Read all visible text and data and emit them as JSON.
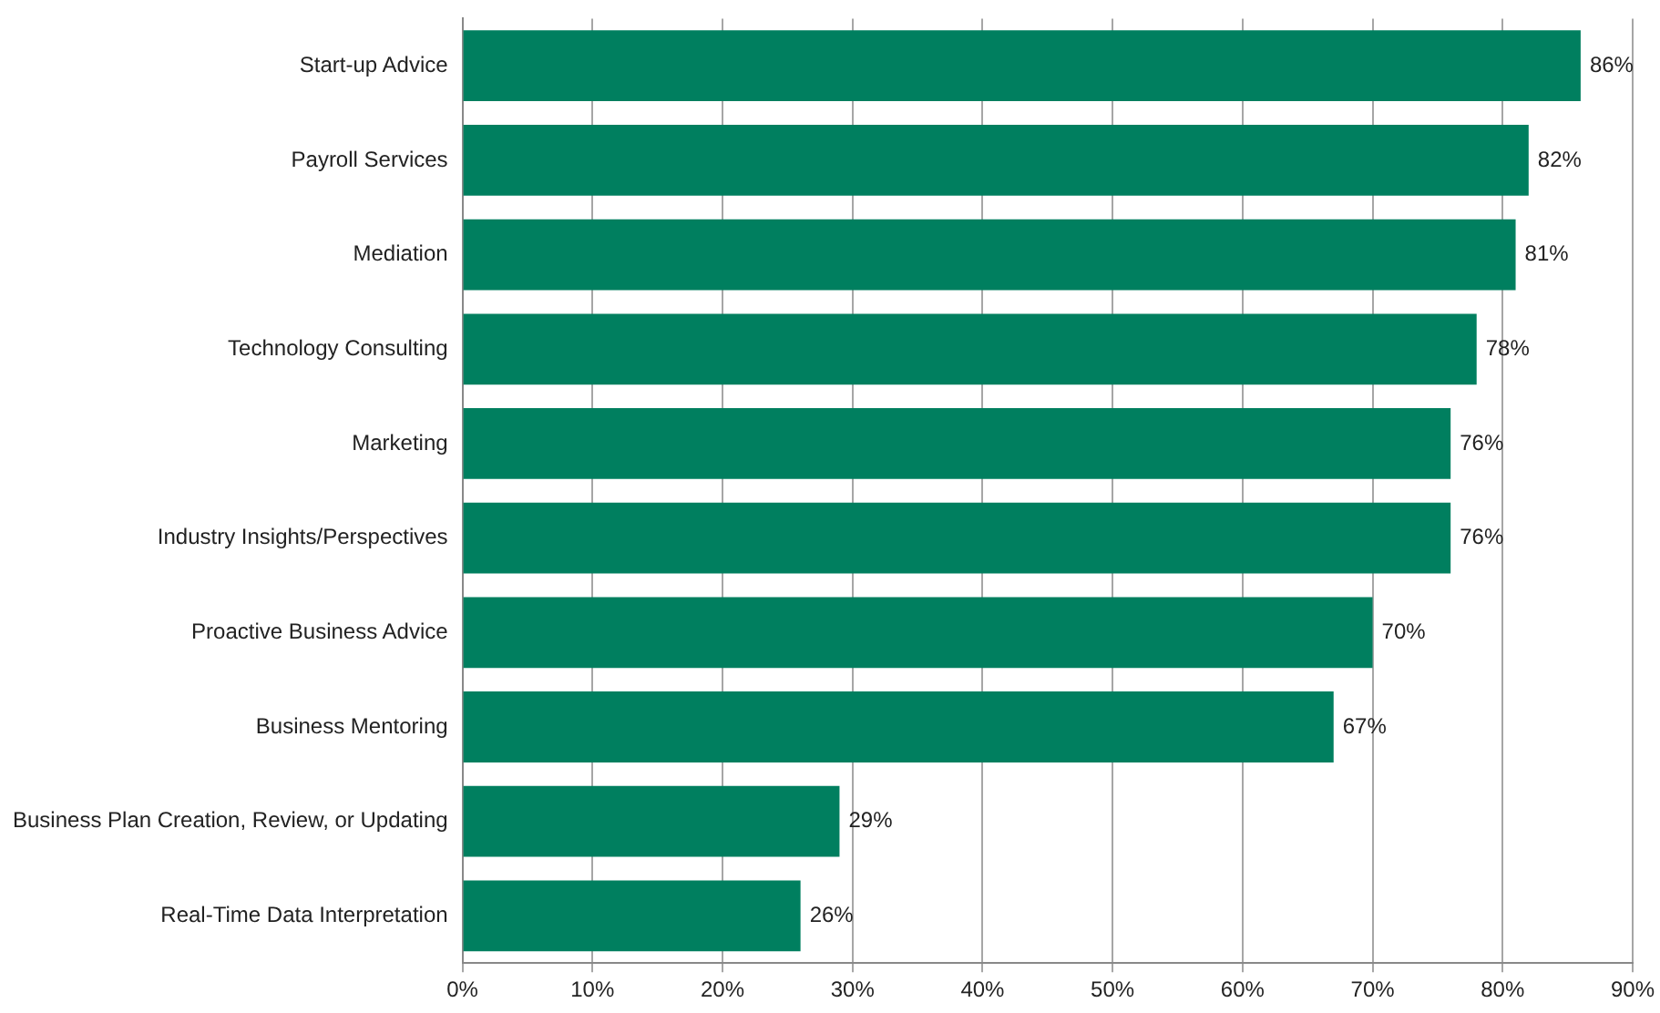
{
  "chart_data": {
    "type": "bar",
    "orientation": "horizontal",
    "categories": [
      "Start-up Advice",
      "Payroll Services",
      "Mediation",
      "Technology Consulting",
      "Marketing",
      "Industry Insights/Perspectives",
      "Proactive Business Advice",
      "Business Mentoring",
      "Business Plan Creation, Review, or Updating",
      "Real-Time Data Interpretation"
    ],
    "values": [
      86,
      82,
      81,
      78,
      76,
      76,
      70,
      67,
      29,
      26
    ],
    "value_labels": [
      "86%",
      "82%",
      "81%",
      "78%",
      "76%",
      "76%",
      "70%",
      "67%",
      "29%",
      "26%"
    ],
    "color": "#007f5f",
    "xlim": [
      0,
      90
    ],
    "xticks": [
      {
        "value": 0,
        "label": "0%"
      },
      {
        "value": 10,
        "label": "10%"
      },
      {
        "value": 20,
        "label": "20%"
      },
      {
        "value": 30,
        "label": "30%"
      },
      {
        "value": 40,
        "label": "40%"
      },
      {
        "value": 50,
        "label": "50%"
      },
      {
        "value": 60,
        "label": "60%"
      },
      {
        "value": 70,
        "label": "70%"
      },
      {
        "value": 80,
        "label": "80%"
      },
      {
        "value": 90,
        "label": "90%"
      }
    ],
    "grid": "x",
    "legend": false
  }
}
